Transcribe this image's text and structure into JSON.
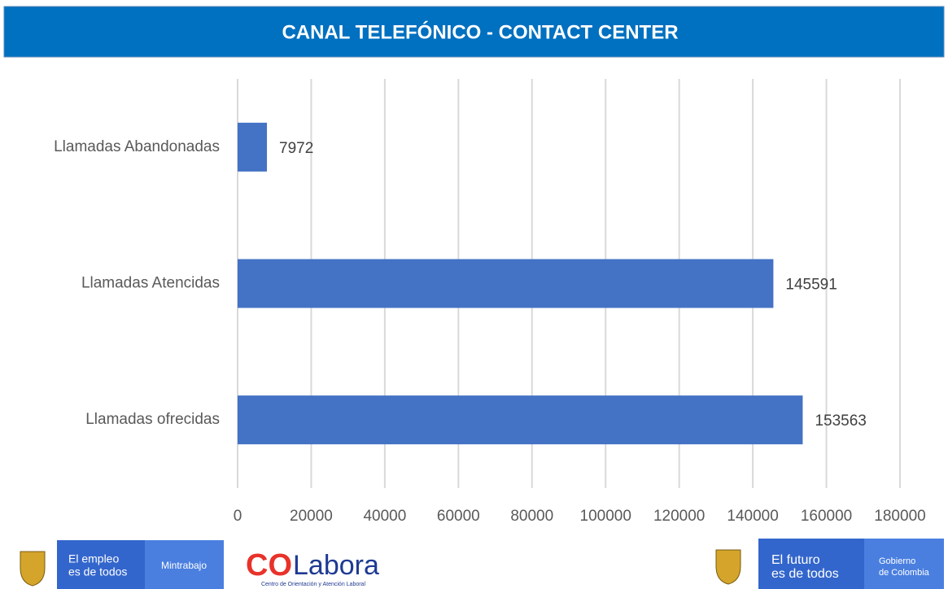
{
  "chart_data": {
    "type": "hbar",
    "title": "CANAL TELEFÓNICO - CONTACT CENTER",
    "categories": [
      "Llamadas Abandonadas",
      "Llamadas Atencidas",
      "Llamadas ofrecidas"
    ],
    "values": [
      7972,
      145591,
      153563
    ],
    "color": "#4472c4",
    "xlim": [
      0,
      180000
    ],
    "xticks": [
      0,
      20000,
      40000,
      60000,
      80000,
      100000,
      120000,
      140000,
      160000,
      180000
    ],
    "grid": true
  },
  "footer": {
    "left": {
      "slogan": [
        "El empleo",
        "es de todos"
      ],
      "ministry": "Mintrabajo"
    },
    "colabora": {
      "brand_a": "CO",
      "brand_b": "Labora",
      "subtitle": "Centro de Orientación y Atención Laboral"
    },
    "right": {
      "slogan": [
        "El futuro",
        "es de todos"
      ],
      "government": [
        "Gobierno",
        "de Colombia"
      ]
    }
  }
}
